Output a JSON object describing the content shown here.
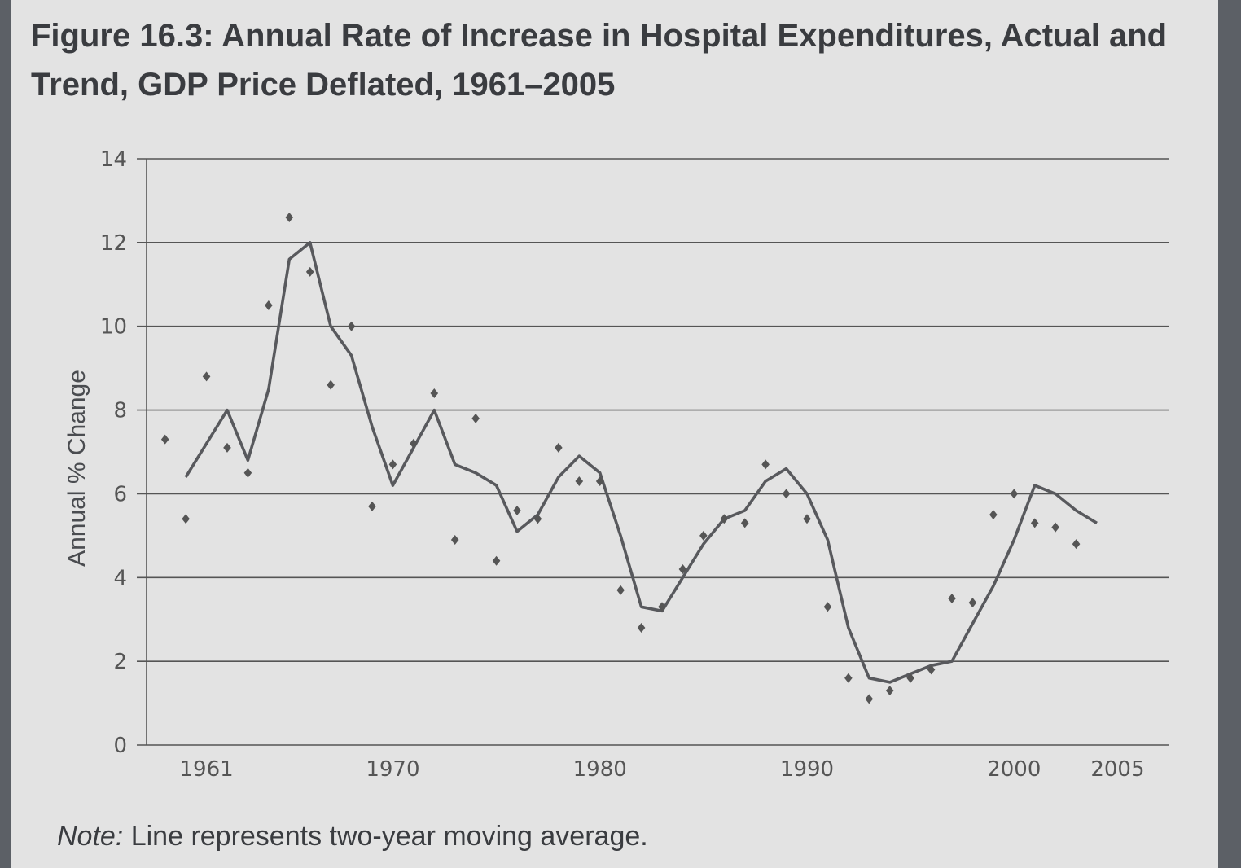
{
  "chart_data": {
    "type": "line",
    "title": "Figure 16.3: Annual Rate of Increase in Hospital Expenditures, Actual and Trend, GDP Price Deflated, 1961–2005",
    "xlabel": "",
    "ylabel": "Annual % Change",
    "ylim": [
      0,
      14
    ],
    "yticks": [
      0,
      2,
      4,
      6,
      8,
      10,
      12,
      14
    ],
    "xticks": [
      1961,
      1970,
      1980,
      1990,
      2000,
      2005
    ],
    "xlim": [
      1958.5,
      2007.5
    ],
    "grid": true,
    "note_prefix": "Note:",
    "note_text": " Line represents two-year moving average.",
    "series": [
      {
        "name": "Actual",
        "style": "markers",
        "x": [
          1959,
          1960,
          1961,
          1962,
          1963,
          1964,
          1965,
          1966,
          1967,
          1968,
          1969,
          1970,
          1971,
          1972,
          1973,
          1974,
          1975,
          1976,
          1977,
          1978,
          1979,
          1980,
          1981,
          1982,
          1983,
          1984,
          1985,
          1986,
          1987,
          1988,
          1989,
          1990,
          1991,
          1992,
          1993,
          1994,
          1995,
          1996,
          1997,
          1998,
          1999,
          2000,
          2001,
          2002,
          2003,
          2004,
          2005
        ],
        "values": [
          7.3,
          5.4,
          8.8,
          7.1,
          6.5,
          10.5,
          12.6,
          11.3,
          8.6,
          10.0,
          5.7,
          6.7,
          7.2,
          8.4,
          4.9,
          7.8,
          4.4,
          5.6,
          5.4,
          7.1,
          6.3,
          6.3,
          3.7,
          2.8,
          3.3,
          4.2,
          5.0,
          5.4,
          5.3,
          6.7,
          6.0,
          5.4,
          3.3,
          1.6,
          1.1,
          1.3,
          1.6,
          1.8,
          3.5,
          3.4,
          5.5,
          6.0,
          5.3,
          5.2,
          4.8,
          null,
          null
        ]
      },
      {
        "name": "Two-year moving average",
        "style": "line",
        "x": [
          1960,
          1961,
          1962,
          1963,
          1964,
          1965,
          1966,
          1967,
          1968,
          1969,
          1970,
          1971,
          1972,
          1973,
          1974,
          1975,
          1976,
          1977,
          1978,
          1979,
          1980,
          1981,
          1982,
          1983,
          1984,
          1985,
          1986,
          1987,
          1988,
          1989,
          1990,
          1991,
          1992,
          1993,
          1994,
          1995,
          1996,
          1997,
          1998,
          1999,
          2000,
          2001,
          2002,
          2003,
          2004,
          2005
        ],
        "values": [
          6.4,
          7.2,
          8.0,
          6.8,
          8.5,
          11.6,
          12.0,
          10.0,
          9.3,
          7.6,
          6.2,
          7.1,
          8.0,
          6.7,
          6.5,
          6.2,
          5.1,
          5.5,
          6.4,
          6.9,
          6.5,
          5.0,
          3.3,
          3.2,
          4.0,
          4.8,
          5.4,
          5.6,
          6.3,
          6.6,
          6.0,
          4.9,
          2.8,
          1.6,
          1.5,
          1.7,
          1.9,
          2.0,
          2.9,
          3.8,
          4.9,
          6.2,
          6.0,
          5.6,
          5.3,
          null
        ]
      }
    ]
  }
}
